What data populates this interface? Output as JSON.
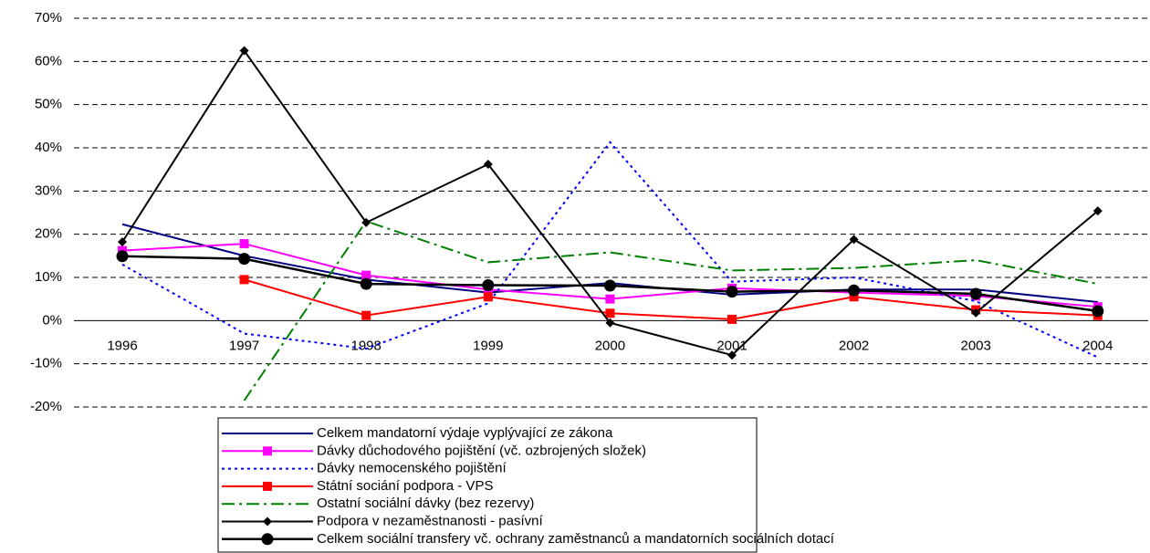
{
  "chart_data": {
    "type": "line",
    "categories": [
      "1996",
      "1997",
      "1998",
      "1999",
      "2000",
      "2001",
      "2002",
      "2003",
      "2004"
    ],
    "ylim": [
      -20,
      70
    ],
    "yticks": [
      {
        "value": -20,
        "label": "-20%"
      },
      {
        "value": -10,
        "label": "-10%"
      },
      {
        "value": 0,
        "label": "0%"
      },
      {
        "value": 10,
        "label": "10%"
      },
      {
        "value": 20,
        "label": "20%"
      },
      {
        "value": 30,
        "label": "30%"
      },
      {
        "value": 40,
        "label": "40%"
      },
      {
        "value": 50,
        "label": "50%"
      },
      {
        "value": 60,
        "label": "60%"
      },
      {
        "value": 70,
        "label": "70%"
      }
    ],
    "grid": true,
    "legend": "bottom",
    "series": [
      {
        "name": "Celkem mandatorní výdaje vyplývající ze zákona",
        "color": "#000080",
        "dash": "solid",
        "marker": "none",
        "values": [
          22.3,
          15,
          9.5,
          6.5,
          8.7,
          6,
          7.2,
          7.2,
          4.3
        ]
      },
      {
        "name": "Dávky důchodového pojištění (vč. ozbrojených složek)",
        "color": "#ff00ff",
        "dash": "solid",
        "marker": "square",
        "values": [
          16.2,
          17.8,
          10.5,
          7.2,
          5,
          7.5,
          6.5,
          5.7,
          3.2
        ]
      },
      {
        "name": "Dávky nemocenského pojištění",
        "color": "#0000ff",
        "dash": "dotted",
        "marker": "none",
        "values": [
          13,
          -3,
          -6.5,
          4,
          41.3,
          9,
          10,
          4.5,
          -8.5
        ]
      },
      {
        "name": "Státní sociání podpora - VPS",
        "color": "#ff0000",
        "dash": "solid",
        "marker": "square",
        "values": [
          null,
          9.5,
          1.2,
          5.5,
          1.7,
          0.3,
          5.5,
          2.5,
          1.2
        ]
      },
      {
        "name": "Ostatní sociální dávky (bez rezervy)",
        "color": "#008000",
        "dash": "dashdot",
        "marker": "none",
        "values": [
          null,
          -18.5,
          23,
          13.5,
          15.8,
          11.6,
          12.2,
          14,
          8.5
        ]
      },
      {
        "name": "Podpora v nezaměstnanosti - pasívní",
        "color": "#000000",
        "dash": "solid",
        "marker": "diamond",
        "values": [
          18.2,
          62.5,
          22.7,
          36.2,
          -0.5,
          -8,
          18.8,
          1.8,
          25.4
        ]
      },
      {
        "name": "Celkem sociální transfery vč. ochrany zaměstnanců a mandatorních sociálních dotací",
        "color": "#000000",
        "dash": "solid",
        "marker": "circle",
        "values": [
          14.9,
          14.3,
          8.5,
          8.2,
          8.1,
          6.7,
          7,
          6.2,
          2.2
        ]
      }
    ]
  }
}
